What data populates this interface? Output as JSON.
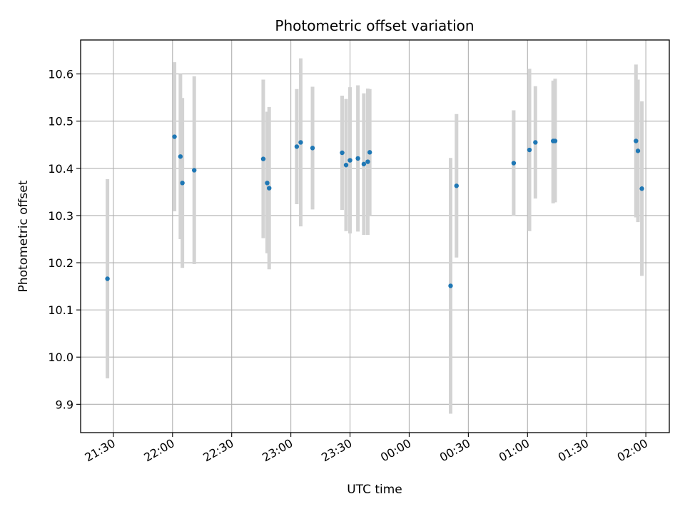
{
  "chart_data": {
    "type": "scatter",
    "title": "Photometric offset variation",
    "xlabel": "UTC time",
    "ylabel": "Photometric offset",
    "x_tick_labels": [
      "21:30",
      "22:00",
      "22:30",
      "23:00",
      "23:30",
      "00:00",
      "00:30",
      "01:00",
      "01:30",
      "02:00"
    ],
    "y_tick_labels": [
      "9.9",
      "10.0",
      "10.1",
      "10.2",
      "10.3",
      "10.4",
      "10.5",
      "10.6"
    ],
    "y_ticks": [
      9.9,
      10.0,
      10.1,
      10.2,
      10.3,
      10.4,
      10.5,
      10.6
    ],
    "x_ticks_minutes_from_2130": [
      0,
      30,
      60,
      90,
      120,
      150,
      180,
      210,
      240,
      270
    ],
    "xlim_minutes_from_2130": [
      -16.6,
      281.9
    ],
    "ylim": [
      9.84,
      10.672
    ],
    "grid": true,
    "marker_color": "#1f77b4",
    "errorbar_color": "#d3d3d3",
    "points": [
      {
        "x": "21:27",
        "y": 10.166,
        "low": 9.955,
        "high": 10.377
      },
      {
        "x": "22:01",
        "y": 10.467,
        "low": 10.309,
        "high": 10.625
      },
      {
        "x": "22:04",
        "y": 10.425,
        "low": 10.25,
        "high": 10.6
      },
      {
        "x": "22:05",
        "y": 10.369,
        "low": 10.189,
        "high": 10.549
      },
      {
        "x": "22:11",
        "y": 10.396,
        "low": 10.197,
        "high": 10.595
      },
      {
        "x": "22:46",
        "y": 10.42,
        "low": 10.252,
        "high": 10.588
      },
      {
        "x": "22:48",
        "y": 10.369,
        "low": 10.22,
        "high": 10.52
      },
      {
        "x": "22:49",
        "y": 10.358,
        "low": 10.186,
        "high": 10.53
      },
      {
        "x": "23:03",
        "y": 10.446,
        "low": 10.324,
        "high": 10.568
      },
      {
        "x": "23:05",
        "y": 10.455,
        "low": 10.277,
        "high": 10.633
      },
      {
        "x": "23:11",
        "y": 10.443,
        "low": 10.313,
        "high": 10.573
      },
      {
        "x": "23:26",
        "y": 10.433,
        "low": 10.312,
        "high": 10.554
      },
      {
        "x": "23:28",
        "y": 10.407,
        "low": 10.267,
        "high": 10.547
      },
      {
        "x": "23:30",
        "y": 10.417,
        "low": 10.262,
        "high": 10.572
      },
      {
        "x": "23:34",
        "y": 10.421,
        "low": 10.266,
        "high": 10.576
      },
      {
        "x": "23:37",
        "y": 10.409,
        "low": 10.259,
        "high": 10.559
      },
      {
        "x": "23:39",
        "y": 10.414,
        "low": 10.259,
        "high": 10.569
      },
      {
        "x": "23:40",
        "y": 10.434,
        "low": 10.3,
        "high": 10.568
      },
      {
        "x": "00:21",
        "y": 10.151,
        "low": 9.88,
        "high": 10.422
      },
      {
        "x": "00:24",
        "y": 10.363,
        "low": 10.211,
        "high": 10.515
      },
      {
        "x": "00:53",
        "y": 10.411,
        "low": 10.299,
        "high": 10.523
      },
      {
        "x": "01:01",
        "y": 10.439,
        "low": 10.267,
        "high": 10.611
      },
      {
        "x": "01:04",
        "y": 10.455,
        "low": 10.336,
        "high": 10.574
      },
      {
        "x": "01:13",
        "y": 10.458,
        "low": 10.326,
        "high": 10.586
      },
      {
        "x": "01:14",
        "y": 10.458,
        "low": 10.328,
        "high": 10.59
      },
      {
        "x": "01:55",
        "y": 10.458,
        "low": 10.296,
        "high": 10.62
      },
      {
        "x": "01:56",
        "y": 10.437,
        "low": 10.286,
        "high": 10.588
      },
      {
        "x": "01:58",
        "y": 10.357,
        "low": 10.172,
        "high": 10.542
      }
    ]
  }
}
